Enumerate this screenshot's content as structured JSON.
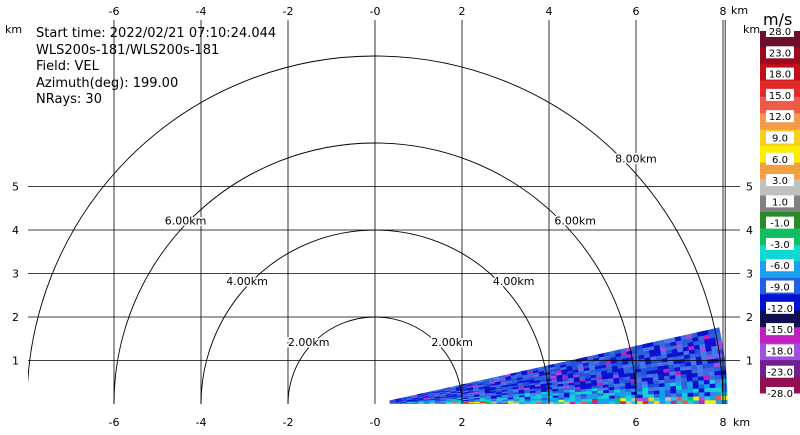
{
  "info": {
    "start_time": "Start time: 2022/02/21 07:10:24.044",
    "instrument": "WLS200s-181/WLS200s-181",
    "field": "Field: VEL",
    "azimuth": "Azimuth(deg): 199.00",
    "nrays": "NRays: 30"
  },
  "colorbar": {
    "unit": "m/s",
    "labels": [
      "28.0",
      "23.0",
      "18.0",
      "15.0",
      "12.0",
      "9.0",
      "6.0",
      "3.0",
      "1.0",
      "-1.0",
      "-3.0",
      "-6.0",
      "-9.0",
      "-12.0",
      "-15.0",
      "-18.0",
      "-23.0",
      "-28.0"
    ],
    "colors": [
      "#6b0f2a",
      "#9b0a1e",
      "#c0101c",
      "#e02a2a",
      "#f05a4a",
      "#f59a4a",
      "#f5d020",
      "#f8ee00",
      "#f0a040",
      "#c0c0c0",
      "#808080",
      "#2a8a2a",
      "#10c060",
      "#10d8d0",
      "#1aa0f0",
      "#2060e0",
      "#0010d0",
      "#101050",
      "#c020c0",
      "#a050e0",
      "#702090",
      "#901050"
    ]
  },
  "chart_data": {
    "type": "heatmap",
    "title": "",
    "xlabel": "km",
    "ylabel": "km",
    "xlim": [
      -8.6,
      8.6
    ],
    "ylim": [
      0,
      5.9
    ],
    "x_ticks": [
      -6,
      -4,
      -2,
      0,
      2,
      4,
      6,
      8
    ],
    "x_tick_labels": [
      "-6",
      "-4",
      "-2",
      "-0",
      "2",
      "4",
      "6",
      "8"
    ],
    "y_ticks": [
      1,
      2,
      3,
      4,
      5
    ],
    "y_tick_labels": [
      "1",
      "2",
      "3",
      "4",
      "5"
    ],
    "unit_label": "km",
    "range_rings_km": [
      2,
      4,
      6,
      8
    ],
    "range_ring_labels": [
      "2.00km",
      "4.00km",
      "6.00km",
      "8.00km"
    ],
    "sector": {
      "range_min_km": 0.35,
      "range_max_km": 8.1,
      "elev_min_deg": 0.0,
      "elev_max_deg": 12.5
    },
    "grid": true
  }
}
